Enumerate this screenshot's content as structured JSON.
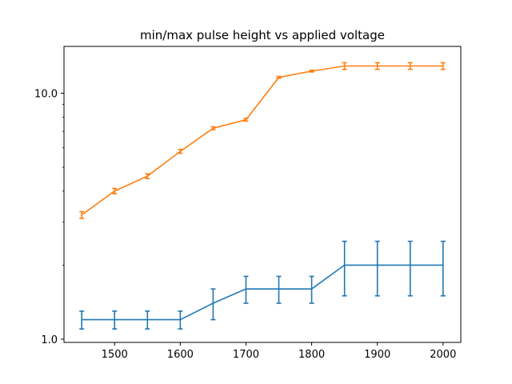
{
  "chart_data": {
    "type": "line",
    "title": "min/max pulse height vs applied voltage",
    "xlabel": "",
    "ylabel": "",
    "y_scale": "log",
    "xlim": [
      1423,
      2027
    ],
    "ylim": [
      0.97,
      15.5
    ],
    "grid": false,
    "x_ticks": [
      1500,
      1600,
      1700,
      1800,
      1900,
      2000
    ],
    "x_tick_labels": [
      "1500",
      "1600",
      "1700",
      "1800",
      "1900",
      "2000"
    ],
    "y_ticks": [
      1.0,
      10.0
    ],
    "y_tick_labels": [
      "1.0",
      "10.0"
    ],
    "x": [
      1450,
      1500,
      1550,
      1600,
      1650,
      1700,
      1750,
      1800,
      1850,
      1900,
      1950,
      2000
    ],
    "series": [
      {
        "color": "#1f77b4",
        "values": [
          1.2,
          1.2,
          1.2,
          1.2,
          1.4,
          1.6,
          1.6,
          1.6,
          2.0,
          2.0,
          2.0,
          2.0
        ],
        "errors": [
          0.1,
          0.1,
          0.1,
          0.1,
          0.2,
          0.2,
          0.2,
          0.2,
          0.5,
          0.5,
          0.5,
          0.5
        ]
      },
      {
        "color": "#ff7f0e",
        "values": [
          3.2,
          4.0,
          4.6,
          5.8,
          7.2,
          7.8,
          11.6,
          12.3,
          12.9,
          12.9,
          12.9,
          12.9
        ],
        "errors": [
          0.1,
          0.1,
          0.1,
          0.1,
          0.1,
          0.1,
          0.1,
          0.1,
          0.4,
          0.4,
          0.4,
          0.4
        ]
      }
    ]
  }
}
